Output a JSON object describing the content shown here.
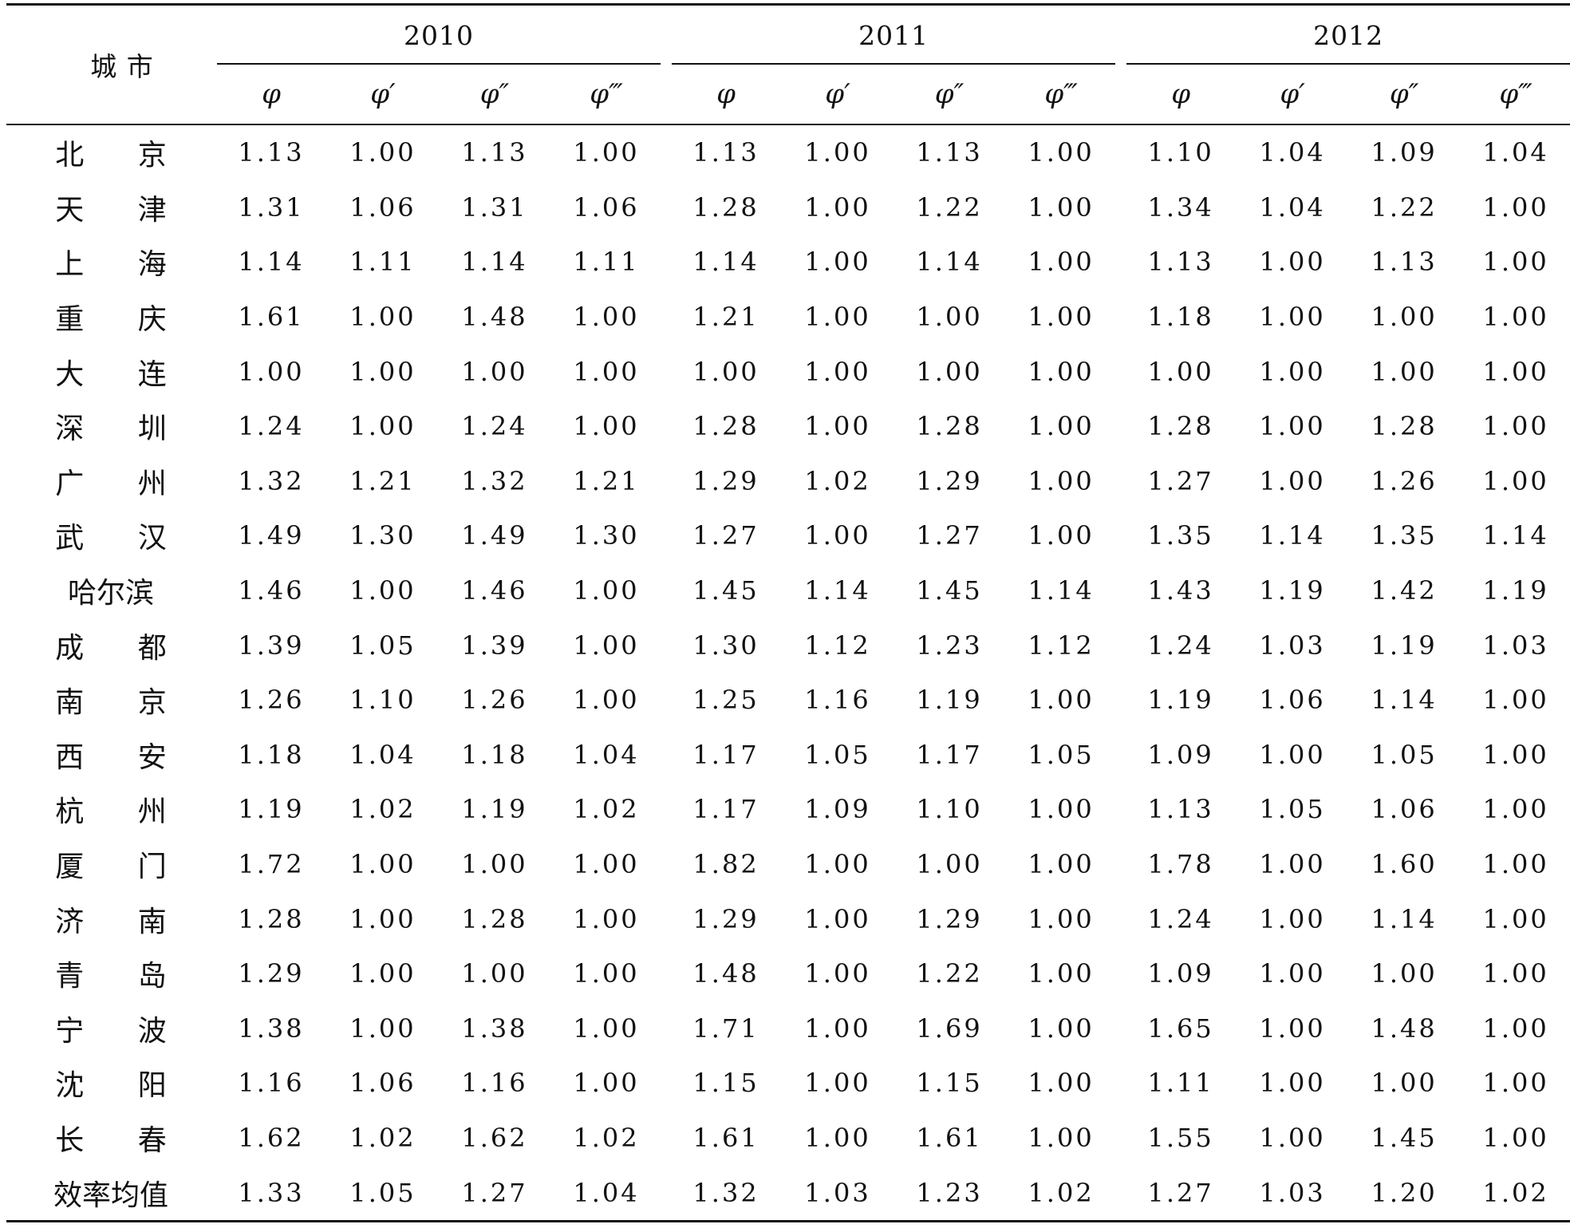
{
  "table": {
    "city_header": "城 市",
    "years": [
      "2010",
      "2011",
      "2012"
    ],
    "symbols": [
      "φ",
      "φ′",
      "φ″",
      "φ‴"
    ],
    "rows": [
      {
        "city": "北 京",
        "values": [
          "1.13",
          "1.00",
          "1.13",
          "1.00",
          "1.13",
          "1.00",
          "1.13",
          "1.00",
          "1.10",
          "1.04",
          "1.09",
          "1.04"
        ]
      },
      {
        "city": "天 津",
        "values": [
          "1.31",
          "1.06",
          "1.31",
          "1.06",
          "1.28",
          "1.00",
          "1.22",
          "1.00",
          "1.34",
          "1.04",
          "1.22",
          "1.00"
        ]
      },
      {
        "city": "上 海",
        "values": [
          "1.14",
          "1.11",
          "1.14",
          "1.11",
          "1.14",
          "1.00",
          "1.14",
          "1.00",
          "1.13",
          "1.00",
          "1.13",
          "1.00"
        ]
      },
      {
        "city": "重 庆",
        "values": [
          "1.61",
          "1.00",
          "1.48",
          "1.00",
          "1.21",
          "1.00",
          "1.00",
          "1.00",
          "1.18",
          "1.00",
          "1.00",
          "1.00"
        ]
      },
      {
        "city": "大 连",
        "values": [
          "1.00",
          "1.00",
          "1.00",
          "1.00",
          "1.00",
          "1.00",
          "1.00",
          "1.00",
          "1.00",
          "1.00",
          "1.00",
          "1.00"
        ]
      },
      {
        "city": "深 圳",
        "values": [
          "1.24",
          "1.00",
          "1.24",
          "1.00",
          "1.28",
          "1.00",
          "1.28",
          "1.00",
          "1.28",
          "1.00",
          "1.28",
          "1.00"
        ]
      },
      {
        "city": "广 州",
        "values": [
          "1.32",
          "1.21",
          "1.32",
          "1.21",
          "1.29",
          "1.02",
          "1.29",
          "1.00",
          "1.27",
          "1.00",
          "1.26",
          "1.00"
        ]
      },
      {
        "city": "武 汉",
        "values": [
          "1.49",
          "1.30",
          "1.49",
          "1.30",
          "1.27",
          "1.00",
          "1.27",
          "1.00",
          "1.35",
          "1.14",
          "1.35",
          "1.14"
        ]
      },
      {
        "city": "哈尔滨",
        "values": [
          "1.46",
          "1.00",
          "1.46",
          "1.00",
          "1.45",
          "1.14",
          "1.45",
          "1.14",
          "1.43",
          "1.19",
          "1.42",
          "1.19"
        ]
      },
      {
        "city": "成 都",
        "values": [
          "1.39",
          "1.05",
          "1.39",
          "1.00",
          "1.30",
          "1.12",
          "1.23",
          "1.12",
          "1.24",
          "1.03",
          "1.19",
          "1.03"
        ]
      },
      {
        "city": "南 京",
        "values": [
          "1.26",
          "1.10",
          "1.26",
          "1.00",
          "1.25",
          "1.16",
          "1.19",
          "1.00",
          "1.19",
          "1.06",
          "1.14",
          "1.00"
        ]
      },
      {
        "city": "西 安",
        "values": [
          "1.18",
          "1.04",
          "1.18",
          "1.04",
          "1.17",
          "1.05",
          "1.17",
          "1.05",
          "1.09",
          "1.00",
          "1.05",
          "1.00"
        ]
      },
      {
        "city": "杭 州",
        "values": [
          "1.19",
          "1.02",
          "1.19",
          "1.02",
          "1.17",
          "1.09",
          "1.10",
          "1.00",
          "1.13",
          "1.05",
          "1.06",
          "1.00"
        ]
      },
      {
        "city": "厦 门",
        "values": [
          "1.72",
          "1.00",
          "1.00",
          "1.00",
          "1.82",
          "1.00",
          "1.00",
          "1.00",
          "1.78",
          "1.00",
          "1.60",
          "1.00"
        ]
      },
      {
        "city": "济 南",
        "values": [
          "1.28",
          "1.00",
          "1.28",
          "1.00",
          "1.29",
          "1.00",
          "1.29",
          "1.00",
          "1.24",
          "1.00",
          "1.14",
          "1.00"
        ]
      },
      {
        "city": "青 岛",
        "values": [
          "1.29",
          "1.00",
          "1.00",
          "1.00",
          "1.48",
          "1.00",
          "1.22",
          "1.00",
          "1.09",
          "1.00",
          "1.00",
          "1.00"
        ]
      },
      {
        "city": "宁 波",
        "values": [
          "1.38",
          "1.00",
          "1.38",
          "1.00",
          "1.71",
          "1.00",
          "1.69",
          "1.00",
          "1.65",
          "1.00",
          "1.48",
          "1.00"
        ]
      },
      {
        "city": "沈 阳",
        "values": [
          "1.16",
          "1.06",
          "1.16",
          "1.00",
          "1.15",
          "1.00",
          "1.15",
          "1.00",
          "1.11",
          "1.00",
          "1.00",
          "1.00"
        ]
      },
      {
        "city": "长 春",
        "values": [
          "1.62",
          "1.02",
          "1.62",
          "1.02",
          "1.61",
          "1.00",
          "1.61",
          "1.00",
          "1.55",
          "1.00",
          "1.45",
          "1.00"
        ]
      },
      {
        "city": "效率均值",
        "values": [
          "1.33",
          "1.05",
          "1.27",
          "1.04",
          "1.32",
          "1.03",
          "1.23",
          "1.02",
          "1.27",
          "1.03",
          "1.20",
          "1.02"
        ]
      }
    ]
  }
}
